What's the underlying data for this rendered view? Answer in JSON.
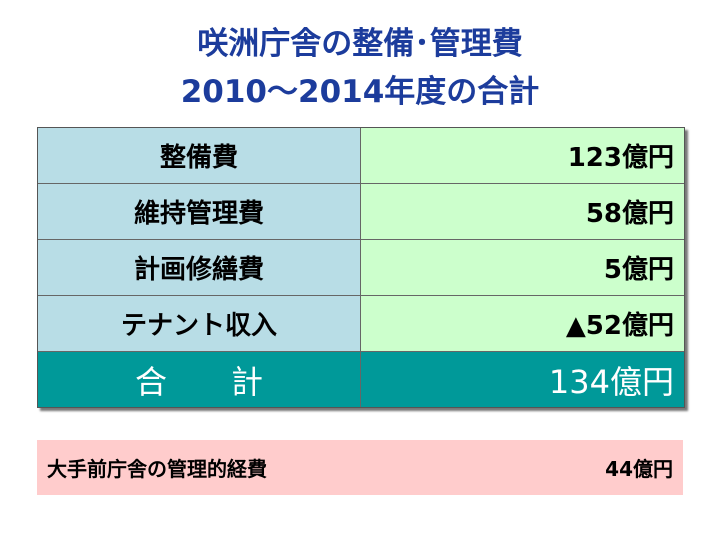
{
  "header": {
    "title_line1": "咲洲庁舎の整備･管理費",
    "title_line2": "2010～2014年度の合計"
  },
  "table": {
    "rows": [
      [
        "整備費",
        "123億円"
      ],
      [
        "維持管理費",
        "58億円"
      ],
      [
        "計画修繕費",
        "5億円"
      ],
      [
        "テナント収入",
        "▲52億円"
      ]
    ],
    "total": [
      "合　　計",
      "134億円"
    ]
  },
  "note": {
    "label": "大手前庁舎の管理的経費",
    "value": "44億円"
  }
}
